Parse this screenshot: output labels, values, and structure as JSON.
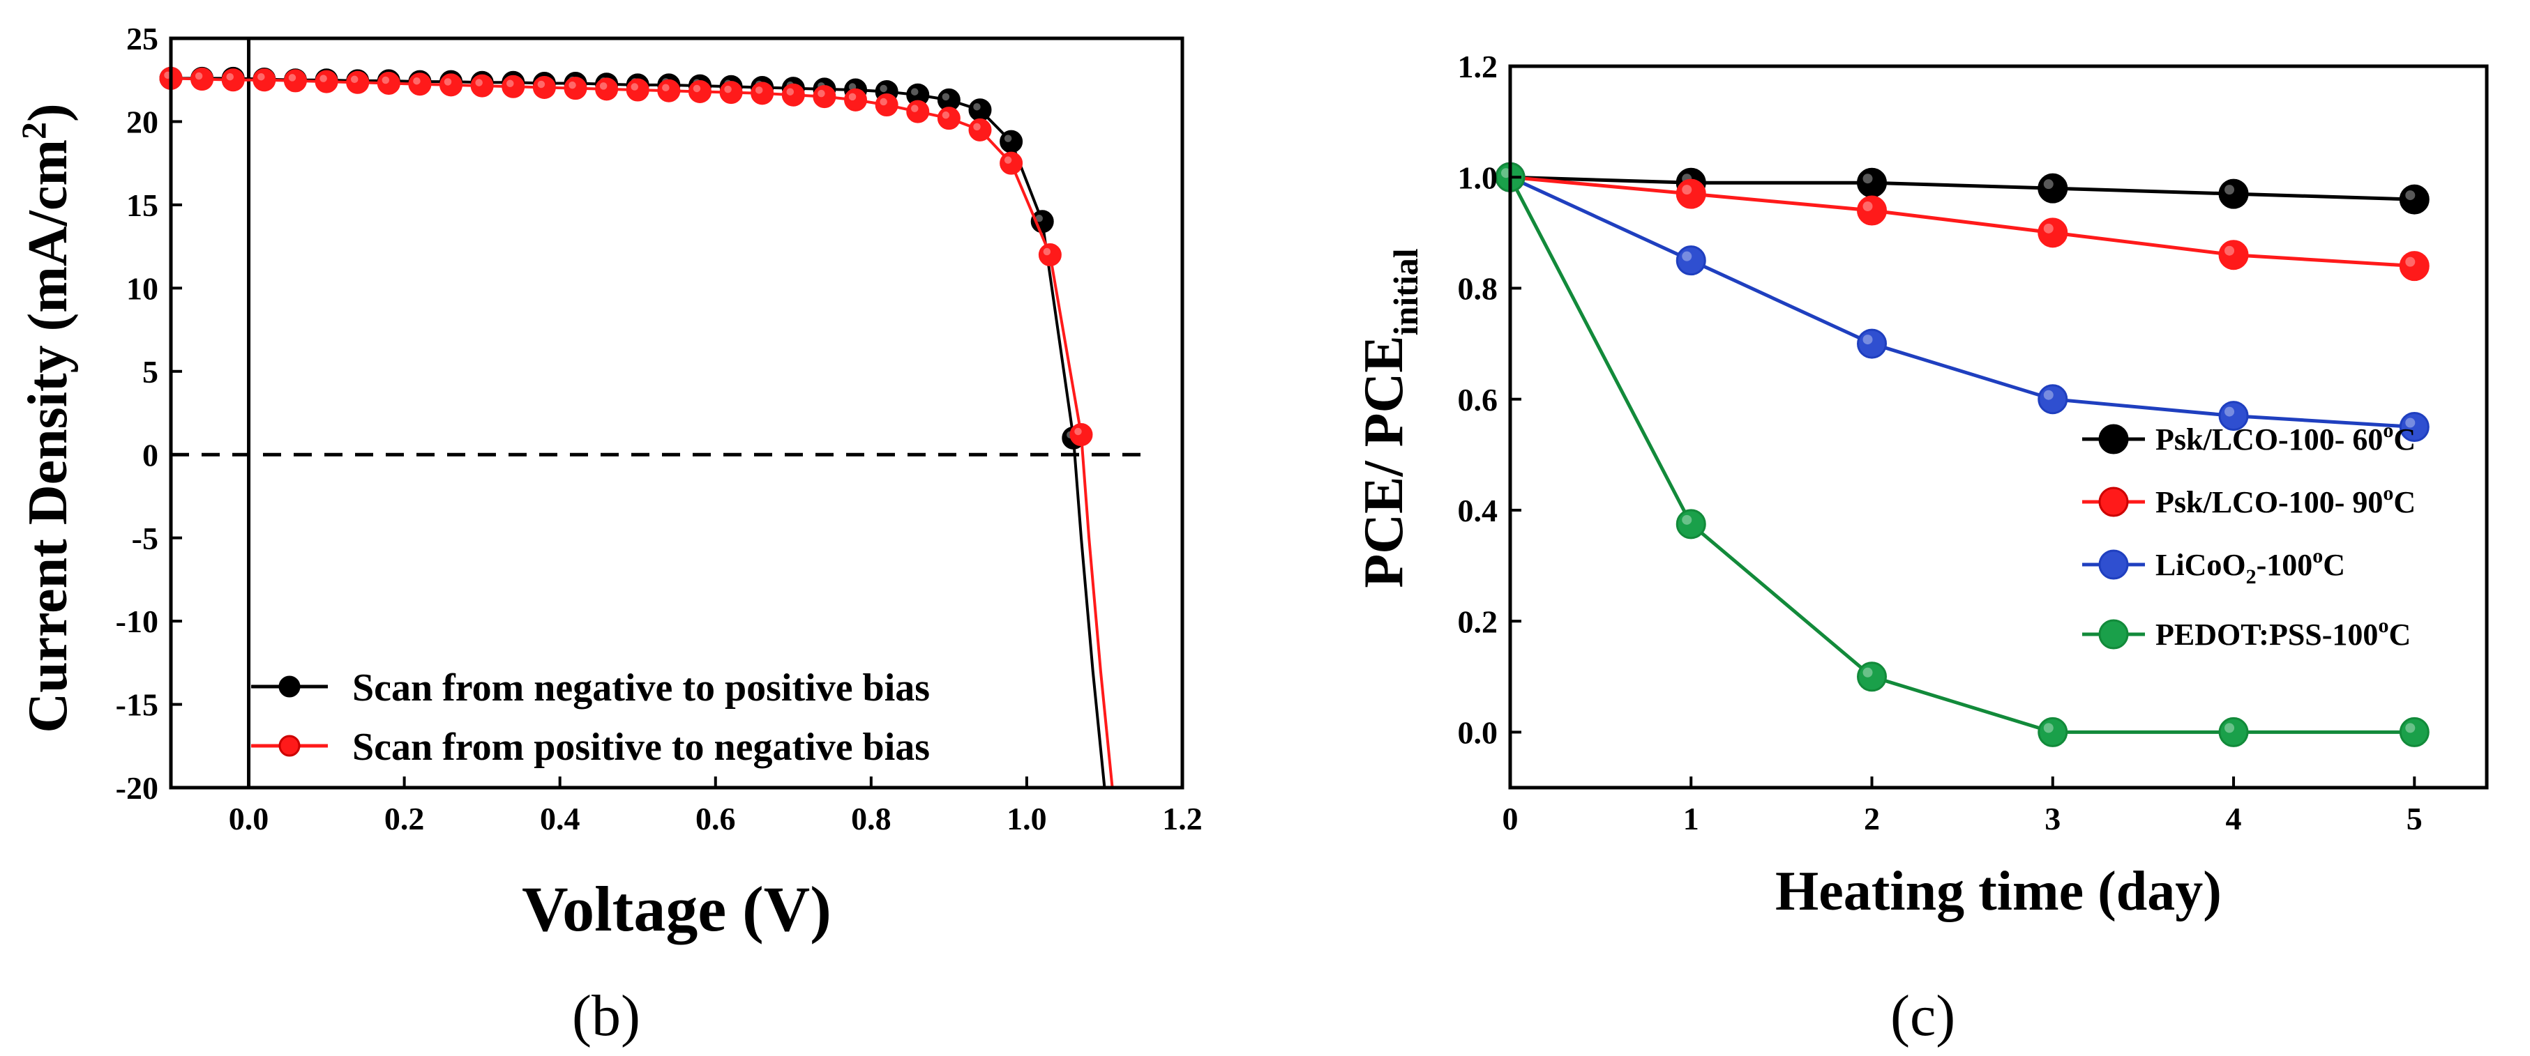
{
  "chart_data": [
    {
      "id": "b",
      "type": "line",
      "panel_label": "(b)",
      "xlabel": "Voltage (V)",
      "ylabel_main": "Current Density (mA/cm",
      "ylabel_sup": "2",
      "ylabel_tail": ")",
      "xlim": [
        -0.1,
        1.2
      ],
      "ylim": [
        -20,
        25
      ],
      "xticks": [
        0.0,
        0.2,
        0.4,
        0.6,
        0.8,
        1.0,
        1.2
      ],
      "xtick_labels": [
        "0.0",
        "0.2",
        "0.4",
        "0.6",
        "0.8",
        "1.0",
        "1.2"
      ],
      "yticks": [
        -20,
        -15,
        -10,
        -5,
        0,
        5,
        10,
        15,
        20,
        25
      ],
      "ytick_labels": [
        "-20",
        "-15",
        "-10",
        "-5",
        "0",
        "5",
        "10",
        "15",
        "20",
        "25"
      ],
      "zero_reference_line": {
        "x": 0,
        "y": 0
      },
      "legend_position": "bottom-left",
      "series": [
        {
          "name": "Scan from negative to positive bias",
          "color": "#000000",
          "marker_fill": "#000000",
          "x": [
            -0.1,
            -0.06,
            -0.02,
            0.02,
            0.06,
            0.1,
            0.14,
            0.18,
            0.22,
            0.26,
            0.3,
            0.34,
            0.38,
            0.42,
            0.46,
            0.5,
            0.54,
            0.58,
            0.62,
            0.66,
            0.7,
            0.74,
            0.78,
            0.82,
            0.86,
            0.9,
            0.94,
            0.98,
            1.02,
            1.06
          ],
          "y": [
            22.6,
            22.6,
            22.6,
            22.55,
            22.5,
            22.5,
            22.45,
            22.45,
            22.4,
            22.4,
            22.35,
            22.35,
            22.3,
            22.3,
            22.25,
            22.2,
            22.2,
            22.15,
            22.1,
            22.05,
            22.0,
            21.95,
            21.9,
            21.8,
            21.6,
            21.3,
            20.7,
            18.8,
            14.0,
            1.0
          ],
          "tail_x": [
            1.07,
            1.085,
            1.1
          ],
          "tail_y": [
            -5,
            -13,
            -20
          ]
        },
        {
          "name": "Scan from positive to negative bias",
          "color": "#ff1a1a",
          "marker_fill": "#ff1a1a",
          "x": [
            -0.1,
            -0.06,
            -0.02,
            0.02,
            0.06,
            0.1,
            0.14,
            0.18,
            0.22,
            0.26,
            0.3,
            0.34,
            0.38,
            0.42,
            0.46,
            0.5,
            0.54,
            0.58,
            0.62,
            0.66,
            0.7,
            0.74,
            0.78,
            0.82,
            0.86,
            0.9,
            0.94,
            0.98,
            1.03,
            1.07
          ],
          "y": [
            22.6,
            22.55,
            22.5,
            22.5,
            22.45,
            22.4,
            22.35,
            22.3,
            22.25,
            22.2,
            22.15,
            22.1,
            22.05,
            22.0,
            21.95,
            21.9,
            21.85,
            21.8,
            21.75,
            21.7,
            21.6,
            21.5,
            21.3,
            21.0,
            20.6,
            20.2,
            19.5,
            17.5,
            12.0,
            1.2
          ],
          "tail_x": [
            1.08,
            1.095,
            1.11
          ],
          "tail_y": [
            -5,
            -13,
            -20
          ]
        }
      ]
    },
    {
      "id": "c",
      "type": "line",
      "panel_label": "(c)",
      "xlabel": "Heating time (day)",
      "ylabel_main": "PCE/ PCE",
      "ylabel_sub": "initial",
      "xlim": [
        0,
        5.4
      ],
      "ylim": [
        -0.1,
        1.2
      ],
      "xticks": [
        0,
        1,
        2,
        3,
        4,
        5
      ],
      "xtick_labels": [
        "0",
        "1",
        "2",
        "3",
        "4",
        "5"
      ],
      "yticks": [
        0.0,
        0.2,
        0.4,
        0.6,
        0.8,
        1.0,
        1.2
      ],
      "ytick_labels": [
        "0.0",
        "0.2",
        "0.4",
        "0.6",
        "0.8",
        "1.0",
        "1.2"
      ],
      "legend_position": "center-right",
      "series": [
        {
          "name_main": "Psk/LCO-100- 60",
          "name_sub": "",
          "name_sup": "o",
          "name_tail": "C",
          "color": "#000000",
          "marker_fill": "#000000",
          "x": [
            0,
            1,
            2,
            3,
            4,
            5
          ],
          "y": [
            1.0,
            0.99,
            0.99,
            0.98,
            0.97,
            0.96
          ]
        },
        {
          "name_main": "Psk/LCO-100- 90",
          "name_sub": "",
          "name_sup": "o",
          "name_tail": "C",
          "color": "#ff1a1a",
          "marker_fill": "#ff1a1a",
          "x": [
            0,
            1,
            2,
            3,
            4,
            5
          ],
          "y": [
            1.0,
            0.97,
            0.94,
            0.9,
            0.86,
            0.84
          ]
        },
        {
          "name_main": "LiCoO",
          "name_sub": "2",
          "name_sup": "o",
          "name_tail": "C",
          "name_mid": "-100",
          "color": "#1f3fbf",
          "marker_fill": "#2f4fd0",
          "x": [
            0,
            1,
            2,
            3,
            4,
            5
          ],
          "y": [
            1.0,
            0.85,
            0.7,
            0.6,
            0.57,
            0.55
          ]
        },
        {
          "name_main": "PEDOT:PSS-100",
          "name_sub": "",
          "name_sup": "o",
          "name_tail": "C",
          "color": "#128a3a",
          "marker_fill": "#1aa04a",
          "x": [
            0,
            1,
            2,
            3,
            4,
            5
          ],
          "y": [
            1.0,
            0.375,
            0.1,
            0.0,
            0.0,
            0.0
          ]
        }
      ]
    }
  ]
}
